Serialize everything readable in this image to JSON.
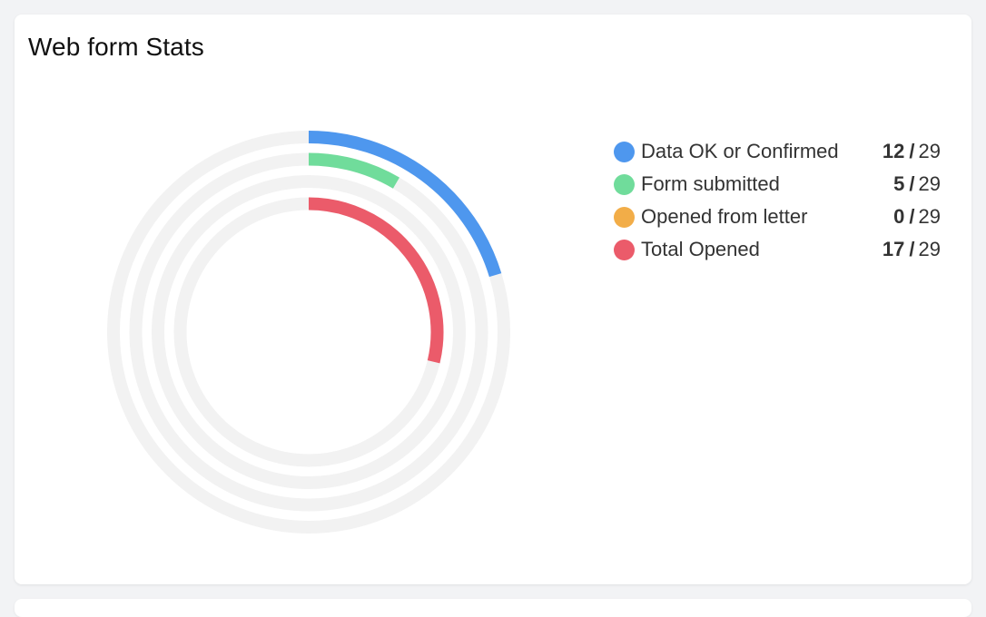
{
  "card": {
    "title": "Web form Stats"
  },
  "chart_data": {
    "type": "radial-bar",
    "total": 29,
    "track_color": "#f2f2f2",
    "series": [
      {
        "name": "Data OK or Confirmed",
        "value": 12,
        "total": 29,
        "color": "#4e97ee"
      },
      {
        "name": "Form submitted",
        "value": 5,
        "total": 29,
        "color": "#70dc9b"
      },
      {
        "name": "Opened from letter",
        "value": 0,
        "total": 29,
        "color": "#f2ad48"
      },
      {
        "name": "Total Opened",
        "value": 17,
        "total": 29,
        "color": "#eb5b6a"
      }
    ]
  },
  "legend": {
    "separator": "/"
  }
}
